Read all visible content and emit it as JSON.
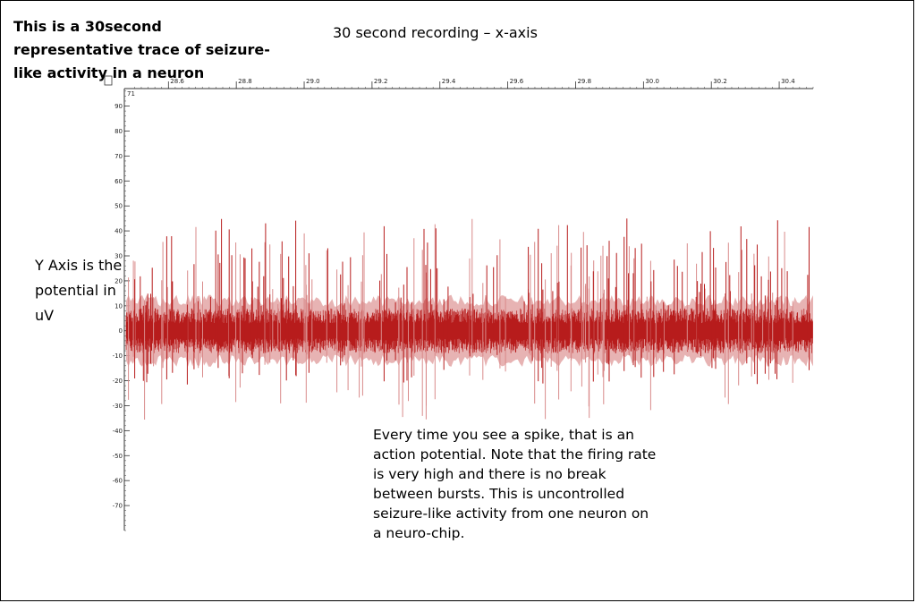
{
  "texts": {
    "title": "This is a 30second representative trace of seizure-like activity in a neuron",
    "x_caption": "30 second recording – x-axis",
    "y_caption": "Y Axis is the potential in uV",
    "note": "Every time you see a spike, that is an action potential. Note that the firing rate is very high and there is no break between bursts. This is uncontrolled seizure-like activity from one neuron on a neuro-chip.",
    "corner_y_label": "71"
  },
  "chart_data": {
    "type": "line",
    "title": "",
    "xlabel": "",
    "ylabel": "",
    "xlim": [
      28.47,
      30.5
    ],
    "ylim": [
      -80,
      97
    ],
    "x_ticks": [
      28.6,
      28.8,
      29.0,
      29.2,
      29.4,
      29.6,
      29.8,
      30.0,
      30.2,
      30.4
    ],
    "x_tick_labels": [
      "28.6",
      "28.8",
      "29.0",
      "29.2",
      "29.4",
      "29.6",
      "29.8",
      "30.0",
      "30.2",
      "30.4"
    ],
    "y_ticks": [
      90,
      80,
      70,
      60,
      50,
      40,
      30,
      20,
      10,
      0,
      -10,
      -20,
      -30,
      -40,
      -50,
      -60,
      -70
    ],
    "y_tick_labels": [
      "90",
      "80",
      "70",
      "60",
      "50",
      "40",
      "30",
      "20",
      "10",
      "0",
      "-10",
      "-20",
      "-30",
      "-40",
      "-50",
      "-60",
      "-70"
    ],
    "series": [
      {
        "color": "#b71c1c",
        "noise_band": [
          -6,
          6
        ],
        "light_band_color": "#e3a6a6",
        "light_band": [
          -12,
          12
        ],
        "peak_max": 45,
        "trough_min": -36
      }
    ],
    "grid": false,
    "legend": "none"
  }
}
